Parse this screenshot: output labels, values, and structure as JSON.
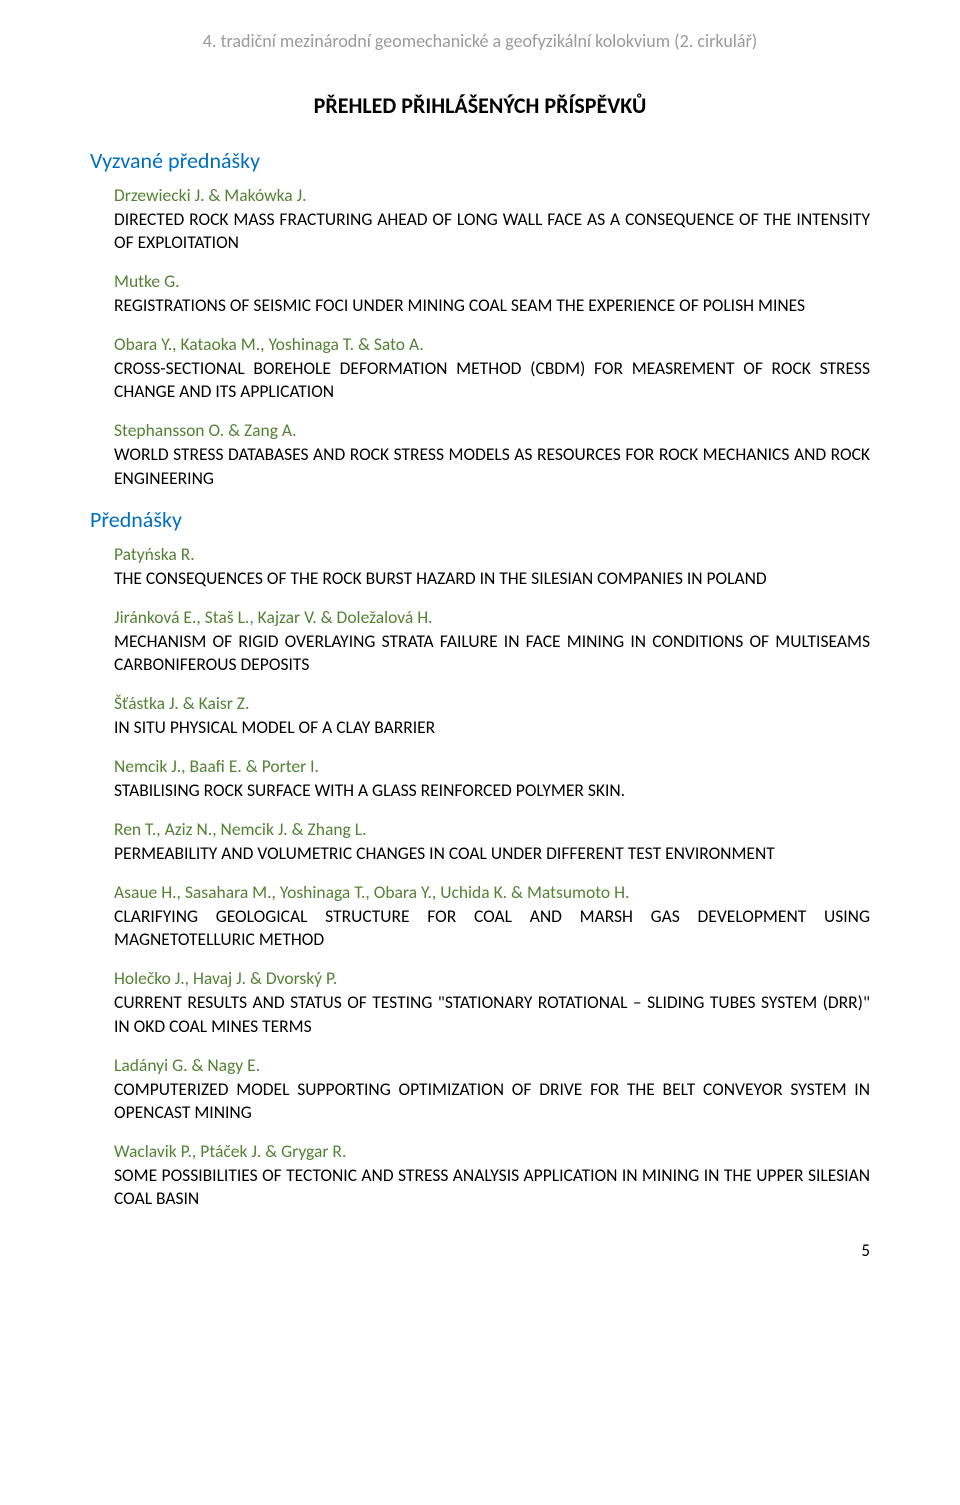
{
  "header": "4. tradiční mezinárodní geomechanické a geofyzikální kolokvium (2. cirkulář)",
  "mainTitle": "PŘEHLED PŘIHLÁŠENÝCH PŘÍSPĚVKŮ",
  "section1": {
    "heading": "Vyzvané přednášky",
    "entries": [
      {
        "authors": "Drzewiecki J. & Makówka J.",
        "title": "DIRECTED ROCK MASS FRACTURING AHEAD OF LONG WALL FACE AS A CONSEQUENCE OF THE INTENSITY OF EXPLOITATION"
      },
      {
        "authors": "Mutke G.",
        "title": "REGISTRATIONS OF SEISMIC FOCI UNDER MINING COAL SEAM   THE EXPERIENCE OF POLISH MINES"
      },
      {
        "authors": "Obara Y., Kataoka M.,  Yoshinaga T. & Sato A.",
        "title": "CROSS-SECTIONAL BOREHOLE DEFORMATION METHOD (CBDM) FOR MEASREMENT OF ROCK STRESS CHANGE AND ITS APPLICATION"
      },
      {
        "authors": "Stephansson O. & Zang A.",
        "title": "WORLD STRESS DATABASES AND ROCK STRESS MODELS AS RESOURCES FOR ROCK MECHANICS AND ROCK ENGINEERING"
      }
    ]
  },
  "section2": {
    "heading": "Přednášky",
    "entries": [
      {
        "authors": "Patyńska R.",
        "title": "THE CONSEQUENCES OF THE ROCK BURST HAZARD IN THE SILESIAN COMPANIES IN POLAND"
      },
      {
        "authors": "Jiránková E., Staš L., Kajzar V. & Doležalová H.",
        "title": "MECHANISM OF RIGID OVERLAYING STRATA FAILURE IN FACE MINING IN CONDITIONS OF MULTISEAMS CARBONIFEROUS DEPOSITS"
      },
      {
        "authors": "Šťástka J. & Kaisr Z.",
        "title": "IN SITU PHYSICAL MODEL OF A CLAY BARRIER"
      },
      {
        "authors": "Nemcik J., Baafi E. & Porter I.",
        "title": "STABILISING ROCK SURFACE WITH A GLASS REINFORCED POLYMER SKIN."
      },
      {
        "authors": "Ren T., Aziz N., Nemcik J. & Zhang L.",
        "title": "PERMEABILITY AND VOLUMETRIC CHANGES IN COAL UNDER DIFFERENT TEST ENVIRONMENT"
      },
      {
        "authors": "Asaue H., Sasahara M., Yoshinaga T., Obara Y., Uchida K. & Matsumoto H.",
        "title": "CLARIFYING GEOLOGICAL STRUCTURE FOR COAL AND MARSH GAS DEVELOPMENT USING MAGNETOTELLURIC METHOD"
      },
      {
        "authors": "Holečko J., Havaj J. &  Dvorský P.",
        "title": "CURRENT RESULTS AND STATUS OF TESTING \"STATIONARY ROTATIONAL – SLIDING TUBES SYSTEM (DRR)\" IN OKD COAL MINES TERMS"
      },
      {
        "authors": "Ladányi G. & Nagy E.",
        "title": "COMPUTERIZED MODEL SUPPORTING OPTIMIZATION OF DRIVE FOR THE BELT CONVEYOR SYSTEM IN OPENCAST MINING"
      },
      {
        "authors": "Waclavik P., Ptáček J. & Grygar R.",
        "title": "SOME POSSIBILITIES OF TECTONIC AND STRESS ANALYSIS APPLICATION IN MINING IN THE UPPER SILESIAN COAL BASIN"
      }
    ]
  },
  "pageNumber": "5",
  "colors": {
    "headerText": "#9a9a9a",
    "sectionHeading": "#006fc0",
    "authors": "#548235",
    "bodyText": "#000000",
    "background": "#ffffff"
  },
  "typography": {
    "headerFontSize": 18,
    "mainTitleFontSize": 22,
    "sectionHeadingFontSize": 22,
    "bodyFontSize": 17.5,
    "fontFamily": "Calibri"
  }
}
